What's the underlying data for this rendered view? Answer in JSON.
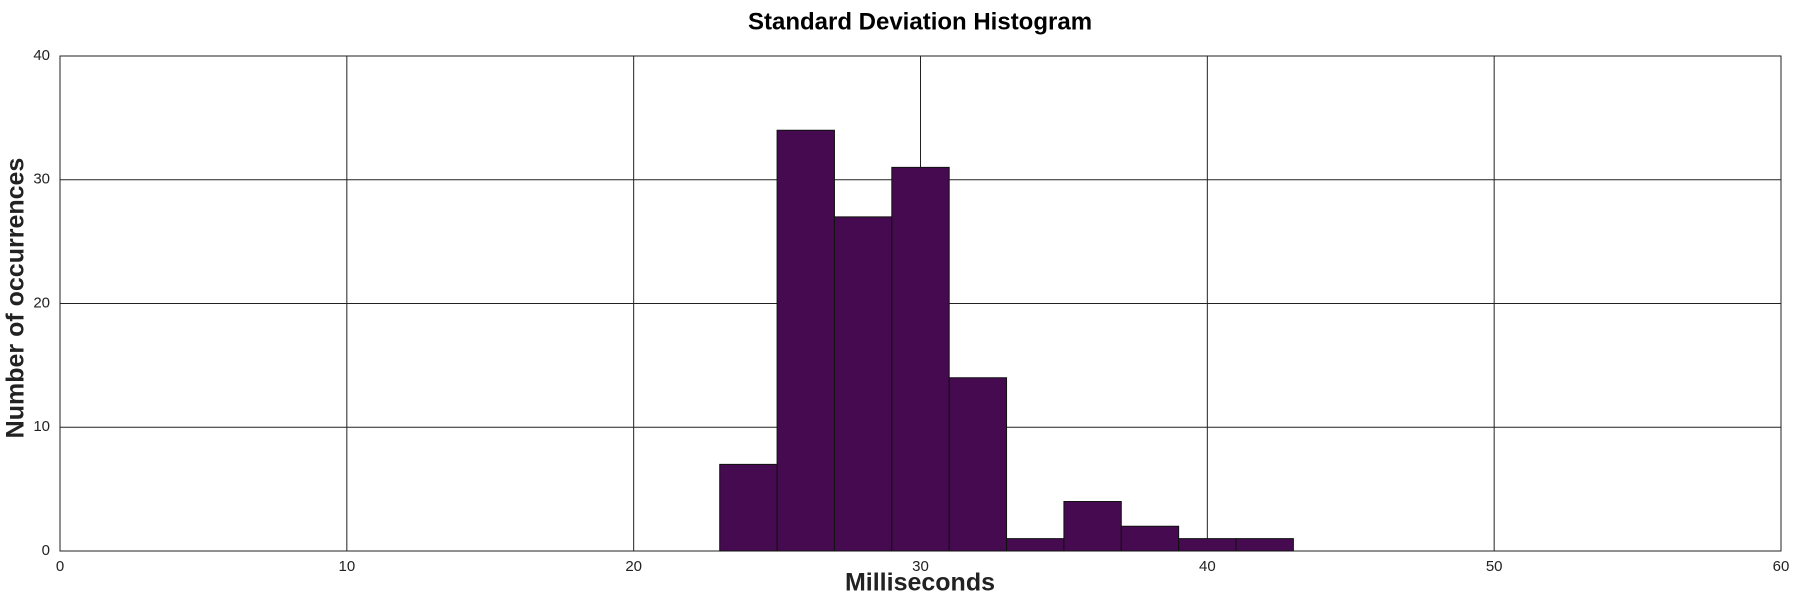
{
  "chart_data": {
    "type": "histogram",
    "title": "Standard Deviation Histogram",
    "x_label": "Milliseconds",
    "y_label": "Number of occurrences",
    "bins": [
      23,
      25,
      27,
      29,
      31,
      33,
      35,
      37,
      39,
      41,
      43
    ],
    "values": [
      7,
      34,
      27,
      31,
      14,
      1,
      4,
      2,
      1,
      1
    ],
    "color": "#450a50",
    "xlim": [
      0,
      60
    ],
    "xticks": [
      0,
      10,
      20,
      30,
      40,
      50,
      60
    ],
    "ylim": [
      0,
      40
    ],
    "yticks": [
      0,
      10,
      20,
      30,
      40
    ],
    "grid": true
  }
}
